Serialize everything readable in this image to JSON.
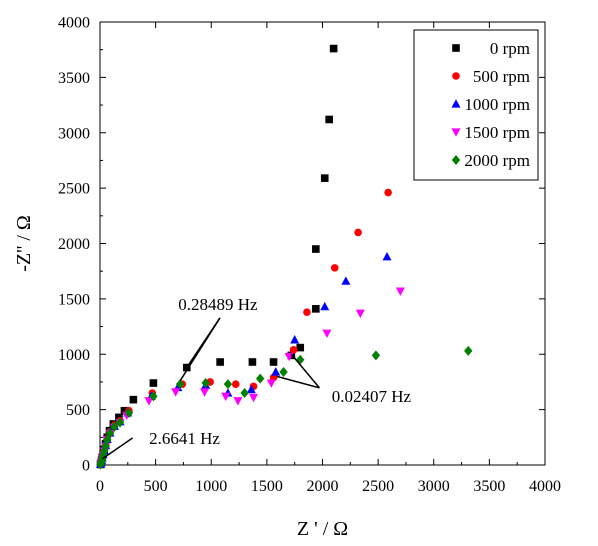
{
  "chart_data": {
    "type": "scatter",
    "title": "",
    "xlabel": "Z ' / Ω",
    "ylabel": "-Z'' / Ω",
    "xlim": [
      0,
      4000
    ],
    "ylim": [
      0,
      4000
    ],
    "xticks": [
      0,
      500,
      1000,
      1500,
      2000,
      2500,
      3000,
      3500,
      4000
    ],
    "yticks": [
      0,
      500,
      1000,
      1500,
      2000,
      2500,
      3000,
      3500,
      4000
    ],
    "grid": false,
    "legend_position": "top-right",
    "series": [
      {
        "name": "0 rpm",
        "color": "#000000",
        "marker": "square",
        "points": [
          [
            5,
            5
          ],
          [
            10,
            22
          ],
          [
            15,
            45
          ],
          [
            20,
            70
          ],
          [
            28,
            100
          ],
          [
            38,
            140
          ],
          [
            50,
            190
          ],
          [
            65,
            250
          ],
          [
            85,
            310
          ],
          [
            120,
            370
          ],
          [
            170,
            430
          ],
          [
            220,
            490
          ],
          [
            300,
            590
          ],
          [
            480,
            740
          ],
          [
            780,
            880
          ],
          [
            1080,
            930
          ],
          [
            1370,
            930
          ],
          [
            1560,
            930
          ],
          [
            1720,
            990
          ],
          [
            1800,
            1060
          ],
          [
            1940,
            1410
          ],
          [
            1940,
            1950
          ],
          [
            2020,
            2590
          ],
          [
            2060,
            3120
          ],
          [
            2100,
            3760
          ]
        ]
      },
      {
        "name": "500 rpm",
        "color": "#ff0000",
        "marker": "circle",
        "points": [
          [
            5,
            5
          ],
          [
            10,
            20
          ],
          [
            15,
            42
          ],
          [
            20,
            66
          ],
          [
            28,
            95
          ],
          [
            38,
            135
          ],
          [
            50,
            180
          ],
          [
            65,
            240
          ],
          [
            90,
            300
          ],
          [
            130,
            360
          ],
          [
            180,
            400
          ],
          [
            260,
            490
          ],
          [
            470,
            650
          ],
          [
            740,
            730
          ],
          [
            990,
            750
          ],
          [
            1220,
            730
          ],
          [
            1380,
            710
          ],
          [
            1560,
            790
          ],
          [
            1740,
            1040
          ],
          [
            1860,
            1380
          ],
          [
            2110,
            1780
          ],
          [
            2320,
            2100
          ],
          [
            2590,
            2460
          ]
        ]
      },
      {
        "name": "1000 rpm",
        "color": "#0000ff",
        "marker": "triangle-up",
        "points": [
          [
            5,
            5
          ],
          [
            10,
            20
          ],
          [
            15,
            40
          ],
          [
            20,
            64
          ],
          [
            28,
            92
          ],
          [
            38,
            130
          ],
          [
            50,
            175
          ],
          [
            65,
            230
          ],
          [
            90,
            290
          ],
          [
            130,
            350
          ],
          [
            180,
            390
          ],
          [
            250,
            470
          ],
          [
            460,
            620
          ],
          [
            700,
            700
          ],
          [
            950,
            720
          ],
          [
            1150,
            650
          ],
          [
            1360,
            680
          ],
          [
            1580,
            840
          ],
          [
            1750,
            1130
          ],
          [
            2020,
            1430
          ],
          [
            2210,
            1660
          ],
          [
            2580,
            1880
          ]
        ]
      },
      {
        "name": "1500 rpm",
        "color": "#ff00ff",
        "marker": "triangle-down",
        "points": [
          [
            5,
            5
          ],
          [
            10,
            18
          ],
          [
            15,
            38
          ],
          [
            20,
            60
          ],
          [
            28,
            88
          ],
          [
            38,
            125
          ],
          [
            50,
            170
          ],
          [
            65,
            225
          ],
          [
            90,
            285
          ],
          [
            130,
            340
          ],
          [
            180,
            380
          ],
          [
            240,
            450
          ],
          [
            440,
            580
          ],
          [
            680,
            660
          ],
          [
            940,
            660
          ],
          [
            1130,
            620
          ],
          [
            1240,
            580
          ],
          [
            1380,
            610
          ],
          [
            1540,
            740
          ],
          [
            1700,
            980
          ],
          [
            2040,
            1190
          ],
          [
            2340,
            1370
          ],
          [
            2700,
            1570
          ]
        ]
      },
      {
        "name": "2000 rpm",
        "color": "#008000",
        "marker": "diamond",
        "points": [
          [
            5,
            5
          ],
          [
            10,
            19
          ],
          [
            15,
            40
          ],
          [
            20,
            62
          ],
          [
            28,
            90
          ],
          [
            38,
            128
          ],
          [
            50,
            172
          ],
          [
            65,
            228
          ],
          [
            90,
            288
          ],
          [
            130,
            345
          ],
          [
            180,
            385
          ],
          [
            260,
            470
          ],
          [
            480,
            620
          ],
          [
            720,
            730
          ],
          [
            950,
            740
          ],
          [
            1150,
            730
          ],
          [
            1300,
            650
          ],
          [
            1440,
            780
          ],
          [
            1650,
            840
          ],
          [
            1800,
            950
          ],
          [
            2480,
            990
          ],
          [
            3310,
            1030
          ]
        ]
      }
    ],
    "annotations": [
      {
        "text": "0.28489 Hz",
        "x": 1060,
        "y": 1400,
        "arrows_to": [
          [
            720,
            760
          ],
          [
            780,
            880
          ]
        ]
      },
      {
        "text": "0.02407 Hz",
        "x": 2440,
        "y": 570,
        "arrows_to": [
          [
            1720,
            1000
          ],
          [
            1590,
            800
          ]
        ]
      },
      {
        "text": "2.6641 Hz",
        "x": 760,
        "y": 190,
        "arrows_to": [
          [
            20,
            55
          ]
        ]
      }
    ]
  }
}
